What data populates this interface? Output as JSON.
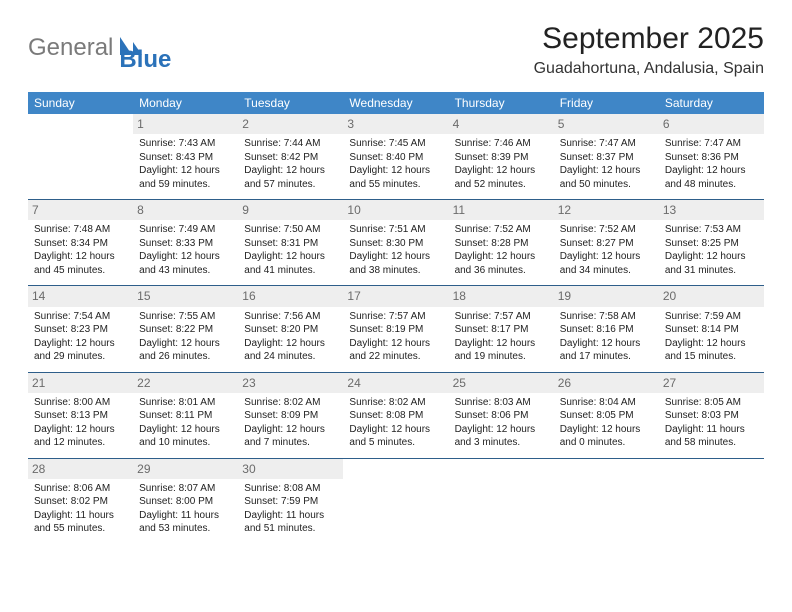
{
  "brand": {
    "part1": "General",
    "part2": "Blue",
    "color_gray": "#7a7a7a",
    "color_blue": "#2b72b9"
  },
  "title": "September 2025",
  "location": "Guadahortuna, Andalusia, Spain",
  "header_bg": "#3f86c7",
  "header_fg": "#ffffff",
  "daynum_bg": "#eeeeee",
  "daynum_fg": "#6b6b6b",
  "row_border": "#2e5e8a",
  "weekdays": [
    "Sunday",
    "Monday",
    "Tuesday",
    "Wednesday",
    "Thursday",
    "Friday",
    "Saturday"
  ],
  "cells": [
    {
      "n": "",
      "sunrise": "",
      "sunset": "",
      "daylight": ""
    },
    {
      "n": "1",
      "sunrise": "Sunrise: 7:43 AM",
      "sunset": "Sunset: 8:43 PM",
      "daylight": "Daylight: 12 hours and 59 minutes."
    },
    {
      "n": "2",
      "sunrise": "Sunrise: 7:44 AM",
      "sunset": "Sunset: 8:42 PM",
      "daylight": "Daylight: 12 hours and 57 minutes."
    },
    {
      "n": "3",
      "sunrise": "Sunrise: 7:45 AM",
      "sunset": "Sunset: 8:40 PM",
      "daylight": "Daylight: 12 hours and 55 minutes."
    },
    {
      "n": "4",
      "sunrise": "Sunrise: 7:46 AM",
      "sunset": "Sunset: 8:39 PM",
      "daylight": "Daylight: 12 hours and 52 minutes."
    },
    {
      "n": "5",
      "sunrise": "Sunrise: 7:47 AM",
      "sunset": "Sunset: 8:37 PM",
      "daylight": "Daylight: 12 hours and 50 minutes."
    },
    {
      "n": "6",
      "sunrise": "Sunrise: 7:47 AM",
      "sunset": "Sunset: 8:36 PM",
      "daylight": "Daylight: 12 hours and 48 minutes."
    },
    {
      "n": "7",
      "sunrise": "Sunrise: 7:48 AM",
      "sunset": "Sunset: 8:34 PM",
      "daylight": "Daylight: 12 hours and 45 minutes."
    },
    {
      "n": "8",
      "sunrise": "Sunrise: 7:49 AM",
      "sunset": "Sunset: 8:33 PM",
      "daylight": "Daylight: 12 hours and 43 minutes."
    },
    {
      "n": "9",
      "sunrise": "Sunrise: 7:50 AM",
      "sunset": "Sunset: 8:31 PM",
      "daylight": "Daylight: 12 hours and 41 minutes."
    },
    {
      "n": "10",
      "sunrise": "Sunrise: 7:51 AM",
      "sunset": "Sunset: 8:30 PM",
      "daylight": "Daylight: 12 hours and 38 minutes."
    },
    {
      "n": "11",
      "sunrise": "Sunrise: 7:52 AM",
      "sunset": "Sunset: 8:28 PM",
      "daylight": "Daylight: 12 hours and 36 minutes."
    },
    {
      "n": "12",
      "sunrise": "Sunrise: 7:52 AM",
      "sunset": "Sunset: 8:27 PM",
      "daylight": "Daylight: 12 hours and 34 minutes."
    },
    {
      "n": "13",
      "sunrise": "Sunrise: 7:53 AM",
      "sunset": "Sunset: 8:25 PM",
      "daylight": "Daylight: 12 hours and 31 minutes."
    },
    {
      "n": "14",
      "sunrise": "Sunrise: 7:54 AM",
      "sunset": "Sunset: 8:23 PM",
      "daylight": "Daylight: 12 hours and 29 minutes."
    },
    {
      "n": "15",
      "sunrise": "Sunrise: 7:55 AM",
      "sunset": "Sunset: 8:22 PM",
      "daylight": "Daylight: 12 hours and 26 minutes."
    },
    {
      "n": "16",
      "sunrise": "Sunrise: 7:56 AM",
      "sunset": "Sunset: 8:20 PM",
      "daylight": "Daylight: 12 hours and 24 minutes."
    },
    {
      "n": "17",
      "sunrise": "Sunrise: 7:57 AM",
      "sunset": "Sunset: 8:19 PM",
      "daylight": "Daylight: 12 hours and 22 minutes."
    },
    {
      "n": "18",
      "sunrise": "Sunrise: 7:57 AM",
      "sunset": "Sunset: 8:17 PM",
      "daylight": "Daylight: 12 hours and 19 minutes."
    },
    {
      "n": "19",
      "sunrise": "Sunrise: 7:58 AM",
      "sunset": "Sunset: 8:16 PM",
      "daylight": "Daylight: 12 hours and 17 minutes."
    },
    {
      "n": "20",
      "sunrise": "Sunrise: 7:59 AM",
      "sunset": "Sunset: 8:14 PM",
      "daylight": "Daylight: 12 hours and 15 minutes."
    },
    {
      "n": "21",
      "sunrise": "Sunrise: 8:00 AM",
      "sunset": "Sunset: 8:13 PM",
      "daylight": "Daylight: 12 hours and 12 minutes."
    },
    {
      "n": "22",
      "sunrise": "Sunrise: 8:01 AM",
      "sunset": "Sunset: 8:11 PM",
      "daylight": "Daylight: 12 hours and 10 minutes."
    },
    {
      "n": "23",
      "sunrise": "Sunrise: 8:02 AM",
      "sunset": "Sunset: 8:09 PM",
      "daylight": "Daylight: 12 hours and 7 minutes."
    },
    {
      "n": "24",
      "sunrise": "Sunrise: 8:02 AM",
      "sunset": "Sunset: 8:08 PM",
      "daylight": "Daylight: 12 hours and 5 minutes."
    },
    {
      "n": "25",
      "sunrise": "Sunrise: 8:03 AM",
      "sunset": "Sunset: 8:06 PM",
      "daylight": "Daylight: 12 hours and 3 minutes."
    },
    {
      "n": "26",
      "sunrise": "Sunrise: 8:04 AM",
      "sunset": "Sunset: 8:05 PM",
      "daylight": "Daylight: 12 hours and 0 minutes."
    },
    {
      "n": "27",
      "sunrise": "Sunrise: 8:05 AM",
      "sunset": "Sunset: 8:03 PM",
      "daylight": "Daylight: 11 hours and 58 minutes."
    },
    {
      "n": "28",
      "sunrise": "Sunrise: 8:06 AM",
      "sunset": "Sunset: 8:02 PM",
      "daylight": "Daylight: 11 hours and 55 minutes."
    },
    {
      "n": "29",
      "sunrise": "Sunrise: 8:07 AM",
      "sunset": "Sunset: 8:00 PM",
      "daylight": "Daylight: 11 hours and 53 minutes."
    },
    {
      "n": "30",
      "sunrise": "Sunrise: 8:08 AM",
      "sunset": "Sunset: 7:59 PM",
      "daylight": "Daylight: 11 hours and 51 minutes."
    },
    {
      "n": "",
      "sunrise": "",
      "sunset": "",
      "daylight": ""
    },
    {
      "n": "",
      "sunrise": "",
      "sunset": "",
      "daylight": ""
    },
    {
      "n": "",
      "sunrise": "",
      "sunset": "",
      "daylight": ""
    },
    {
      "n": "",
      "sunrise": "",
      "sunset": "",
      "daylight": ""
    }
  ]
}
